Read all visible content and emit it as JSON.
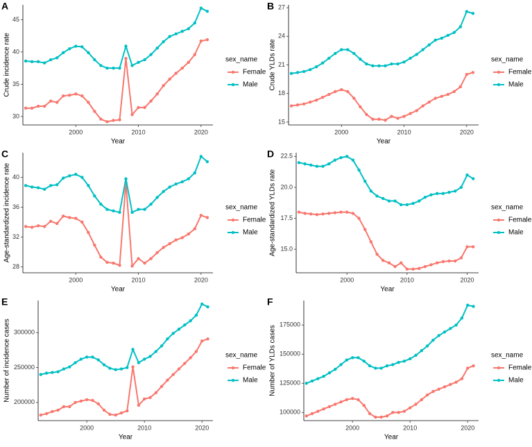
{
  "chart_data": [
    {
      "type": "line",
      "tag": "A",
      "xlabel": "Year",
      "ylabel": "Crude incidence rate",
      "legend_title": "sex_name",
      "x": [
        1992,
        1993,
        1994,
        1995,
        1996,
        1997,
        1998,
        1999,
        2000,
        2001,
        2002,
        2003,
        2004,
        2005,
        2006,
        2007,
        2008,
        2009,
        2010,
        2011,
        2012,
        2013,
        2014,
        2015,
        2016,
        2017,
        2018,
        2019,
        2020,
        2021
      ],
      "xlim": [
        1991.55,
        2021.9
      ],
      "xticks": [
        2000,
        2010,
        2020
      ],
      "ylim": [
        28.7,
        47.3
      ],
      "yticks": [
        30,
        35,
        40,
        45
      ],
      "series": [
        {
          "name": "Female",
          "color": "#F8766D",
          "values": [
            31.3,
            31.3,
            31.6,
            31.6,
            32.4,
            32.2,
            33.2,
            33.3,
            33.5,
            33.2,
            32.2,
            30.8,
            29.6,
            29.2,
            29.4,
            29.5,
            39.0,
            30.3,
            31.4,
            31.4,
            32.4,
            33.5,
            34.8,
            35.8,
            36.7,
            37.5,
            38.4,
            39.6,
            41.7,
            41.9
          ]
        },
        {
          "name": "Male",
          "color": "#00BFC4",
          "values": [
            38.6,
            38.5,
            38.5,
            38.3,
            38.8,
            39.1,
            39.9,
            40.5,
            40.9,
            40.8,
            39.9,
            38.8,
            37.9,
            37.5,
            37.5,
            37.5,
            40.9,
            37.9,
            38.4,
            38.8,
            39.6,
            40.6,
            41.6,
            42.4,
            42.8,
            43.2,
            43.6,
            44.5,
            46.8,
            46.3
          ]
        }
      ]
    },
    {
      "type": "line",
      "tag": "B",
      "xlabel": "Year",
      "ylabel": "Crude YLDs rate",
      "legend_title": "sex_name",
      "x": [
        1992,
        1993,
        1994,
        1995,
        1996,
        1997,
        1998,
        1999,
        2000,
        2001,
        2002,
        2003,
        2004,
        2005,
        2006,
        2007,
        2008,
        2009,
        2010,
        2011,
        2012,
        2013,
        2014,
        2015,
        2016,
        2017,
        2018,
        2019,
        2020,
        2021
      ],
      "xlim": [
        1991.55,
        2021.9
      ],
      "xticks": [
        2000,
        2010,
        2020
      ],
      "ylim": [
        14.7,
        27.3
      ],
      "yticks": [
        15,
        18,
        21,
        24,
        27
      ],
      "series": [
        {
          "name": "Female",
          "color": "#F8766D",
          "values": [
            16.7,
            16.8,
            16.9,
            17.1,
            17.3,
            17.6,
            17.9,
            18.2,
            18.4,
            18.2,
            17.5,
            16.6,
            15.8,
            15.3,
            15.3,
            15.2,
            15.6,
            15.4,
            15.6,
            15.9,
            16.2,
            16.7,
            17.1,
            17.5,
            17.7,
            17.9,
            18.2,
            18.7,
            20.0,
            20.2
          ]
        },
        {
          "name": "Male",
          "color": "#00BFC4",
          "values": [
            20.1,
            20.2,
            20.3,
            20.5,
            20.8,
            21.2,
            21.7,
            22.2,
            22.6,
            22.6,
            22.2,
            21.6,
            21.1,
            20.9,
            20.9,
            20.9,
            21.1,
            21.1,
            21.3,
            21.7,
            22.1,
            22.6,
            23.1,
            23.6,
            23.8,
            24.1,
            24.4,
            25.0,
            26.6,
            26.4
          ]
        }
      ]
    },
    {
      "type": "line",
      "tag": "C",
      "xlabel": "Year",
      "ylabel": "Age-standardized incidence rate",
      "legend_title": "sex_name",
      "x": [
        1992,
        1993,
        1994,
        1995,
        1996,
        1997,
        1998,
        1999,
        2000,
        2001,
        2002,
        2003,
        2004,
        2005,
        2006,
        2007,
        2008,
        2009,
        2010,
        2011,
        2012,
        2013,
        2014,
        2015,
        2016,
        2017,
        2018,
        2019,
        2020,
        2021
      ],
      "xlim": [
        1991.55,
        2021.9
      ],
      "xticks": [
        2000,
        2010,
        2020
      ],
      "ylim": [
        27.2,
        43.3
      ],
      "yticks": [
        28,
        32,
        36,
        40
      ],
      "series": [
        {
          "name": "Female",
          "color": "#F8766D",
          "values": [
            33.4,
            33.3,
            33.5,
            33.4,
            34.1,
            33.8,
            34.8,
            34.6,
            34.5,
            34.0,
            32.6,
            30.9,
            29.3,
            28.6,
            28.5,
            28.2,
            39.3,
            28.1,
            29.1,
            28.5,
            29.1,
            29.9,
            30.6,
            31.1,
            31.6,
            31.9,
            32.4,
            33.1,
            34.9,
            34.6
          ]
        },
        {
          "name": "Male",
          "color": "#00BFC4",
          "values": [
            38.9,
            38.7,
            38.6,
            38.4,
            38.9,
            39.0,
            39.9,
            40.2,
            40.4,
            40.0,
            38.9,
            37.5,
            36.4,
            35.7,
            35.5,
            35.3,
            39.8,
            35.3,
            35.7,
            35.7,
            36.4,
            37.3,
            38.1,
            38.7,
            39.1,
            39.4,
            39.8,
            40.6,
            42.8,
            42.1
          ]
        }
      ]
    },
    {
      "type": "line",
      "tag": "D",
      "xlabel": "Year",
      "ylabel": "Age-standardized YLDs rate",
      "legend_title": "sex_name",
      "x": [
        1992,
        1993,
        1994,
        1995,
        1996,
        1997,
        1998,
        1999,
        2000,
        2001,
        2002,
        2003,
        2004,
        2005,
        2006,
        2007,
        2008,
        2009,
        2010,
        2011,
        2012,
        2013,
        2014,
        2015,
        2016,
        2017,
        2018,
        2019,
        2020,
        2021
      ],
      "xlim": [
        1991.55,
        2021.9
      ],
      "xticks": [
        2000,
        2010,
        2020
      ],
      "ylim": [
        13.1,
        22.8
      ],
      "yticks": [
        {
          "value": 15,
          "label": "15.0"
        },
        17.5,
        {
          "value": 20,
          "label": "20.0"
        },
        22.5
      ],
      "series": [
        {
          "name": "Female",
          "color": "#F8766D",
          "values": [
            18.0,
            17.9,
            17.85,
            17.8,
            17.85,
            17.9,
            17.95,
            18.0,
            18.0,
            17.9,
            17.5,
            16.6,
            15.6,
            14.6,
            14.1,
            13.9,
            13.6,
            13.9,
            13.4,
            13.4,
            13.45,
            13.6,
            13.75,
            13.9,
            14.0,
            14.05,
            14.05,
            14.3,
            15.2,
            15.2
          ]
        },
        {
          "name": "Male",
          "color": "#00BFC4",
          "values": [
            22.0,
            21.9,
            21.8,
            21.7,
            21.7,
            21.9,
            22.2,
            22.4,
            22.5,
            22.2,
            21.4,
            20.5,
            19.7,
            19.3,
            19.1,
            18.9,
            18.9,
            18.6,
            18.6,
            18.7,
            18.9,
            19.2,
            19.4,
            19.5,
            19.5,
            19.6,
            19.7,
            20.0,
            21.0,
            20.7
          ]
        }
      ]
    },
    {
      "type": "line",
      "tag": "E",
      "xlabel": "Year",
      "ylabel": "Number of incidence cases",
      "legend_title": "sex_name",
      "x": [
        1992,
        1993,
        1994,
        1995,
        1996,
        1997,
        1998,
        1999,
        2000,
        2001,
        2002,
        2003,
        2004,
        2005,
        2006,
        2007,
        2008,
        2009,
        2010,
        2011,
        2012,
        2013,
        2014,
        2015,
        2016,
        2017,
        2018,
        2019,
        2020,
        2021
      ],
      "xlim": [
        1991.55,
        2021.9
      ],
      "xticks": [
        2000,
        2010,
        2020
      ],
      "ylim": [
        174000,
        346000
      ],
      "yticks": [
        200000,
        250000,
        300000
      ],
      "series": [
        {
          "name": "Female",
          "color": "#F8766D",
          "values": [
            182000,
            184000,
            187000,
            189000,
            194000,
            194000,
            200000,
            202000,
            204000,
            203000,
            198000,
            189000,
            183000,
            182000,
            185000,
            188000,
            251000,
            196000,
            205000,
            207000,
            214000,
            223000,
            232000,
            240000,
            248000,
            256000,
            264000,
            273000,
            288000,
            291000
          ]
        },
        {
          "name": "Male",
          "color": "#00BFC4",
          "values": [
            240000,
            242000,
            243000,
            244000,
            248000,
            251000,
            257000,
            262000,
            265000,
            265000,
            261000,
            254000,
            249000,
            247000,
            248000,
            250000,
            276000,
            257000,
            262000,
            266000,
            273000,
            281000,
            291000,
            299000,
            305000,
            311000,
            317000,
            325000,
            341000,
            337000
          ]
        }
      ]
    },
    {
      "type": "line",
      "tag": "F",
      "xlabel": "Year",
      "ylabel": "Number of YLDs cases",
      "legend_title": "sex_name",
      "x": [
        1992,
        1993,
        1994,
        1995,
        1996,
        1997,
        1998,
        1999,
        2000,
        2001,
        2002,
        2003,
        2004,
        2005,
        2006,
        2007,
        2008,
        2009,
        2010,
        2011,
        2012,
        2013,
        2014,
        2015,
        2016,
        2017,
        2018,
        2019,
        2020,
        2021
      ],
      "xlim": [
        1991.55,
        2021.9
      ],
      "xticks": [
        2000,
        2010,
        2020
      ],
      "ylim": [
        93000,
        196000
      ],
      "yticks": [
        100000,
        125000,
        150000,
        175000
      ],
      "series": [
        {
          "name": "Female",
          "color": "#F8766D",
          "values": [
            97000,
            99000,
            101000,
            103000,
            105000,
            107000,
            109000,
            111000,
            112000,
            111000,
            106000,
            99000,
            96000,
            96000,
            97000,
            100000,
            100000,
            101000,
            104000,
            107000,
            111000,
            115000,
            118000,
            120000,
            122000,
            124000,
            126000,
            129000,
            138000,
            140000
          ]
        },
        {
          "name": "Male",
          "color": "#00BFC4",
          "values": [
            125000,
            127000,
            129000,
            131000,
            134000,
            137000,
            141000,
            145000,
            147000,
            147000,
            144000,
            140000,
            138000,
            138000,
            140000,
            141000,
            143000,
            144000,
            146000,
            149000,
            153000,
            157000,
            162000,
            166000,
            169000,
            172000,
            175000,
            181000,
            192000,
            191000
          ]
        }
      ]
    }
  ]
}
